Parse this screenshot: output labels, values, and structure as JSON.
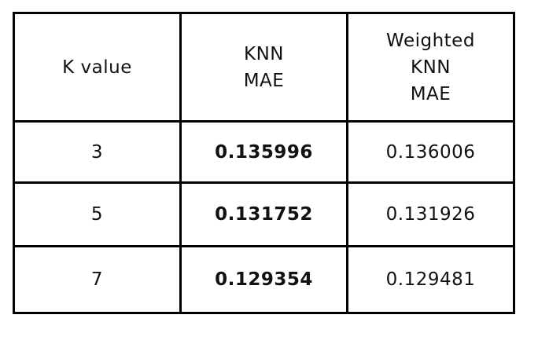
{
  "table": {
    "headers": {
      "k_value": "K value",
      "knn_mae": [
        "KNN",
        "MAE"
      ],
      "weighted_knn_mae": [
        "Weighted",
        "KNN",
        "MAE"
      ]
    },
    "rows": [
      {
        "k": "3",
        "knn_mae": "0.135996",
        "weighted_knn_mae": "0.136006"
      },
      {
        "k": "5",
        "knn_mae": "0.131752",
        "weighted_knn_mae": "0.131926"
      },
      {
        "k": "7",
        "knn_mae": "0.129354",
        "weighted_knn_mae": "0.129481"
      }
    ]
  }
}
